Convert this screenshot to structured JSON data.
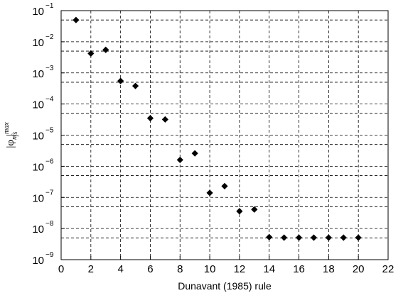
{
  "chart_data": {
    "type": "scatter",
    "title": "",
    "xlabel": "Dunavant (1985) rule",
    "ylabel": {
      "main": "|φ",
      "sub": "n",
      "close": "|",
      "superscript": "max",
      "subscript": "fs"
    },
    "x_scale": "linear",
    "y_scale": "log",
    "xlim": [
      0,
      22
    ],
    "ylim": [
      1e-09,
      0.1
    ],
    "x_ticks": [
      0,
      2,
      4,
      6,
      8,
      10,
      12,
      14,
      16,
      18,
      20,
      22
    ],
    "y_ticks": [
      {
        "base": "10",
        "exp": "−9",
        "value": 1e-09
      },
      {
        "base": "10",
        "exp": "−8",
        "value": 1e-08
      },
      {
        "base": "10",
        "exp": "−7",
        "value": 1e-07
      },
      {
        "base": "10",
        "exp": "−6",
        "value": 1e-06
      },
      {
        "base": "10",
        "exp": "−5",
        "value": 1e-05
      },
      {
        "base": "10",
        "exp": "−4",
        "value": 0.0001
      },
      {
        "base": "10",
        "exp": "−3",
        "value": 0.001
      },
      {
        "base": "10",
        "exp": "−2",
        "value": 0.01
      },
      {
        "base": "10",
        "exp": "−1",
        "value": 0.1
      }
    ],
    "y_grid_values": [
      0.1,
      0.05,
      0.01,
      0.005,
      0.001,
      0.0005,
      0.0001,
      5e-05,
      1e-05,
      5e-06,
      1e-06,
      5e-07,
      1e-07,
      5e-08,
      1e-08,
      5e-09
    ],
    "grid": {
      "style": "dashed",
      "vertical": true,
      "horizontal": true
    },
    "marker": "diamond",
    "marker_color": "#000000",
    "x": [
      1,
      2,
      3,
      4,
      5,
      6,
      7,
      8,
      9,
      10,
      11,
      12,
      13,
      14,
      15,
      16,
      17,
      18,
      19,
      20
    ],
    "y": [
      0.05,
      0.0042,
      0.0055,
      0.00055,
      0.00038,
      3.5e-05,
      3.2e-05,
      1.6e-06,
      2.6e-06,
      1.4e-07,
      2.3e-07,
      3.6e-08,
      4.1e-08,
      5.3e-09,
      5.1e-09,
      5.1e-09,
      5.1e-09,
      5.1e-09,
      5.1e-09,
      5.1e-09
    ]
  }
}
